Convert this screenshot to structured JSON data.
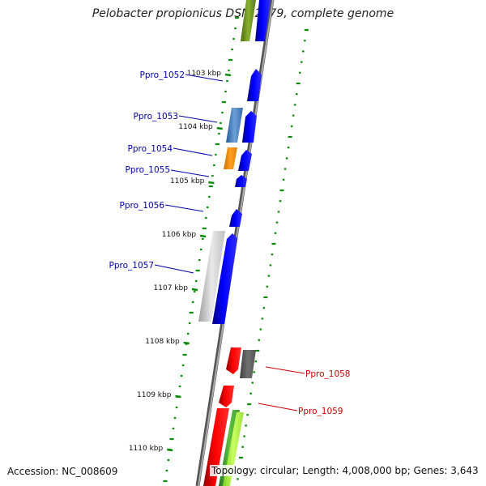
{
  "title": "Pelobacter propionicus DSM 2379, complete genome",
  "accession": "Accession: NC_008609",
  "summary": "Topology: circular; Length: 4,008,000 bp; Genes: 3,643",
  "kbp_labels": [
    "1103 kbp",
    "1104 kbp",
    "1105 kbp",
    "1106 kbp",
    "1107 kbp",
    "1108 kbp",
    "1109 kbp",
    "1110 kbp"
  ],
  "gene_labels": [
    {
      "name": "Ppro_1052",
      "color": "#0000aa"
    },
    {
      "name": "Ppro_1053",
      "color": "#0000aa"
    },
    {
      "name": "Ppro_1054",
      "color": "#0000aa"
    },
    {
      "name": "Ppro_1055",
      "color": "#0000aa"
    },
    {
      "name": "Ppro_1056",
      "color": "#0000aa"
    },
    {
      "name": "Ppro_1057",
      "color": "#0000aa"
    },
    {
      "name": "Ppro_1058",
      "color": "#cc0000"
    },
    {
      "name": "Ppro_1059",
      "color": "#cc0000"
    }
  ],
  "colors": {
    "forward": "#0000ff",
    "reverse": "#ff0000",
    "backbone": "#888888",
    "gc_ticks": "#0a8a0a"
  }
}
